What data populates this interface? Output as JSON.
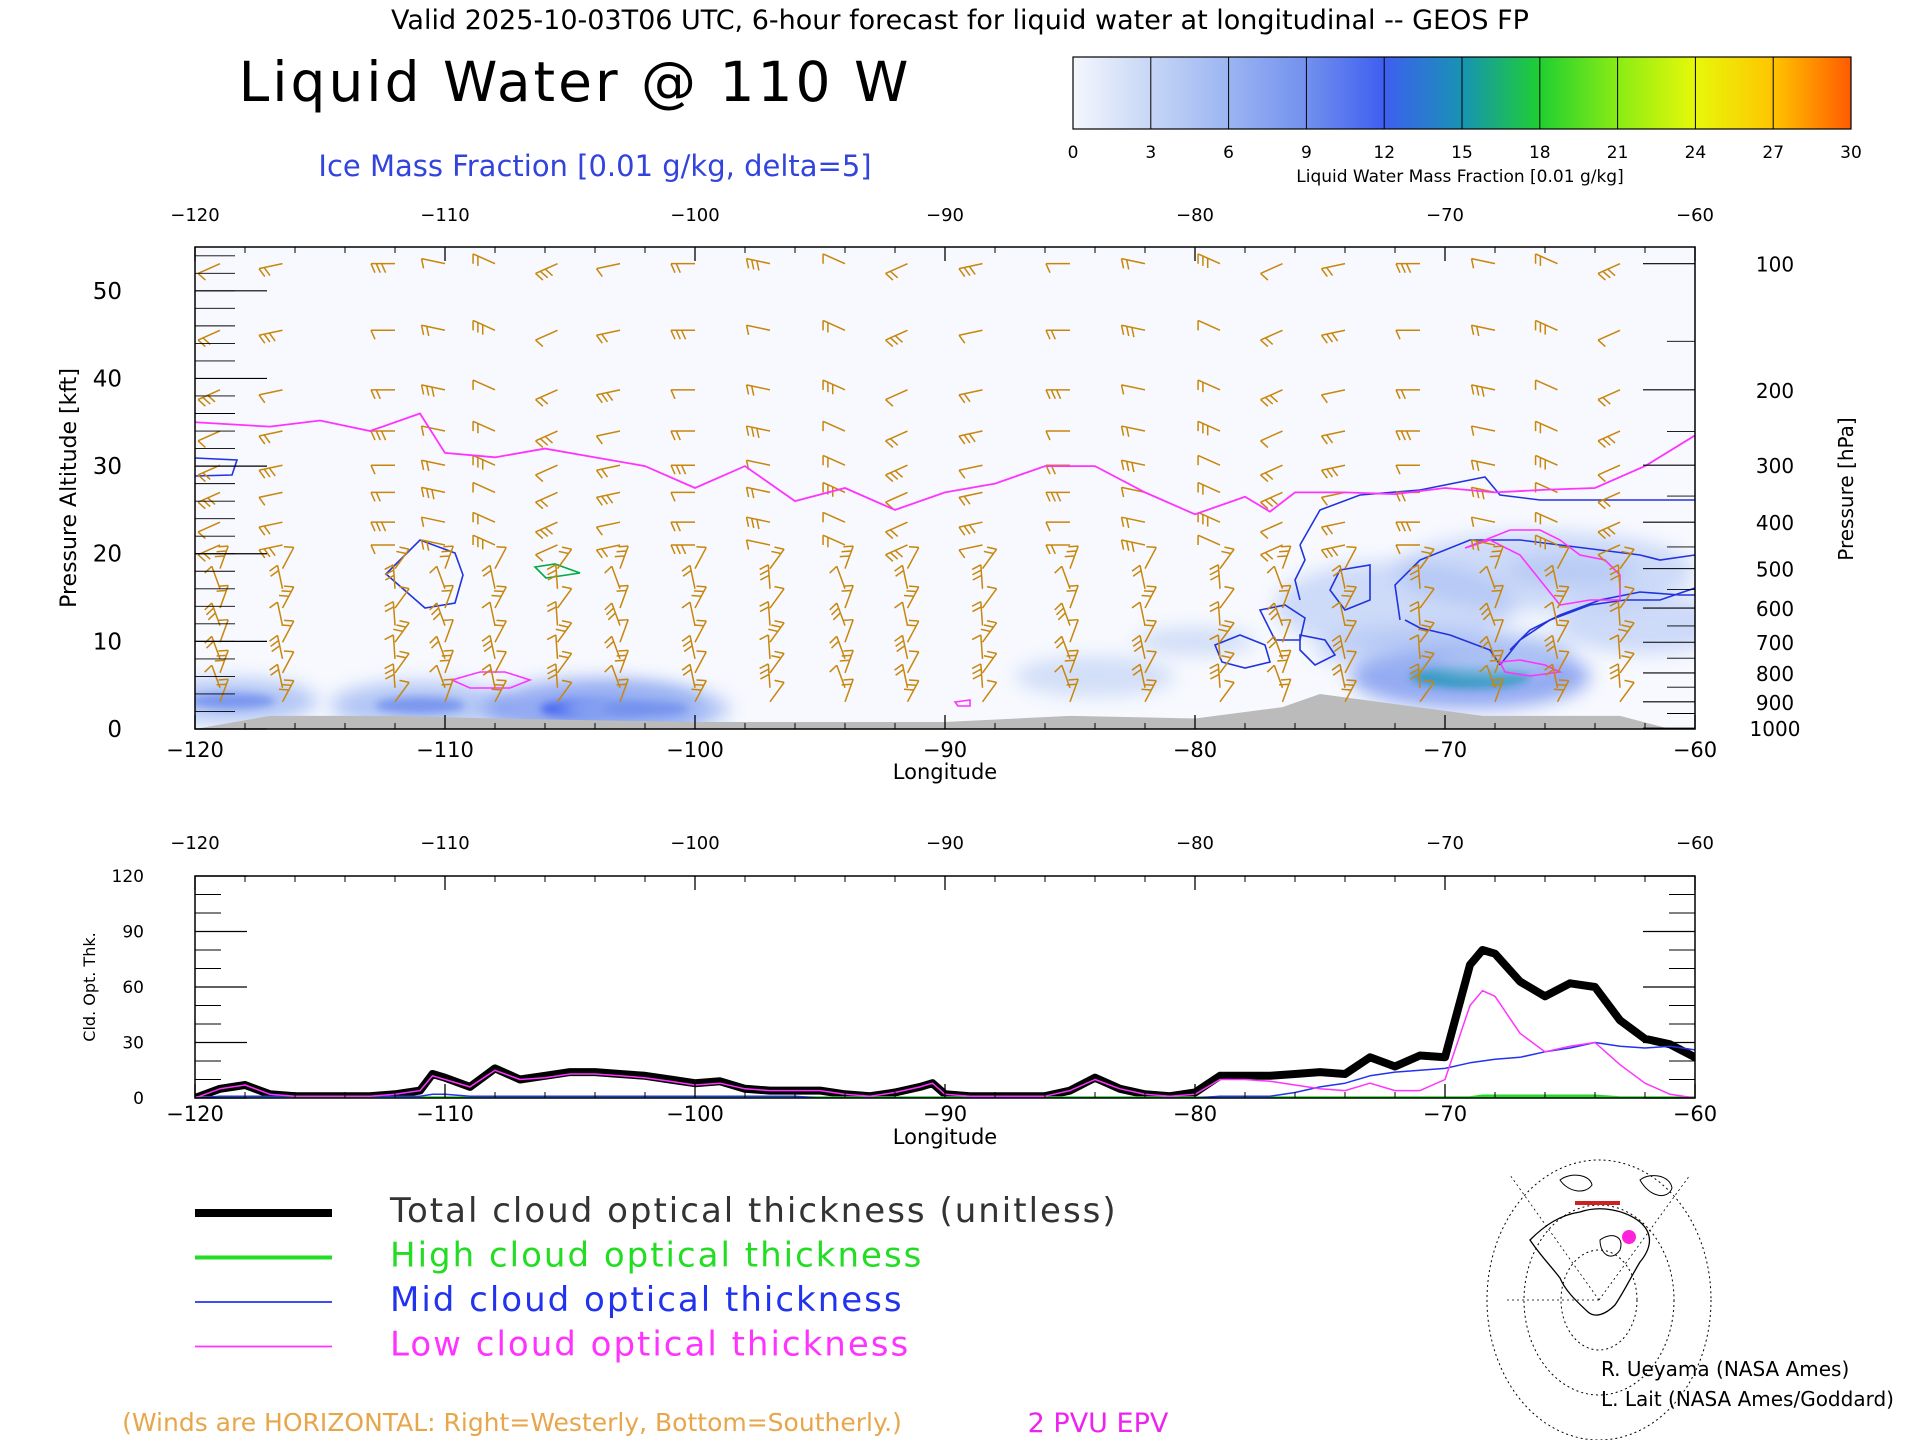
{
  "header": {
    "top_line": "Valid 2025-10-03T06 UTC, 6-hour forecast for liquid water at longitudinal -- GEOS FP",
    "title": "Liquid Water @ 110 W",
    "subtitle": "Ice Mass Fraction [0.01 g/kg, delta=5]"
  },
  "colorbar": {
    "label": "Liquid Water Mass Fraction [0.01 g/kg]",
    "ticks": [
      "0",
      "3",
      "6",
      "9",
      "12",
      "15",
      "18",
      "21",
      "24",
      "27",
      "30"
    ],
    "colors": [
      "#f4f7fd",
      "#c6d6f6",
      "#9bb5f2",
      "#7290ee",
      "#3e5ff0",
      "#1793b3",
      "#1fcf31",
      "#8aec14",
      "#e8f80a",
      "#ffc400",
      "#ff5a00"
    ]
  },
  "legend": {
    "items": [
      {
        "label": "Total cloud optical thickness (unitless)",
        "color": "#000000"
      },
      {
        "label": "High cloud optical thickness",
        "color": "#22dd22"
      },
      {
        "label": "Mid cloud optical thickness",
        "color": "#2233ee"
      },
      {
        "label": "Low cloud optical thickness",
        "color": "#ff33ff"
      }
    ]
  },
  "footer": {
    "winds_note": "(Winds are HORIZONTAL: Right=Westerly, Bottom=Southerly.)",
    "epv_label": "2 PVU EPV",
    "credit_1": "R. Ueyama (NASA Ames)",
    "credit_2": "L. Lait (NASA Ames/Goddard)"
  },
  "colors": {
    "wind_barb": "#c8860b",
    "ice_contour": "#2233dd",
    "epv": "#ff33ff",
    "terrain": "#bbbbbb",
    "epv_text": "#ee22ee",
    "subtitle_text": "#3344dd",
    "winds_text": "#e8a64a"
  },
  "chart_data": [
    {
      "type": "heatmap",
      "name_hint": "cross-section",
      "xlabel": "Longitude",
      "ylabel": "Pressure Altitude [kft]",
      "ylabel_right": "Pressure [hPa]",
      "xlim": [
        -120,
        -60
      ],
      "ylim": [
        0,
        55
      ],
      "xticks": [
        "−120",
        "−110",
        "−100",
        "−90",
        "−80",
        "−70",
        "−60"
      ],
      "xtick_values": [
        -120,
        -110,
        -100,
        -90,
        -80,
        -70,
        -60
      ],
      "yticks": [
        "0",
        "10",
        "20",
        "30",
        "40",
        "50"
      ],
      "ytick_values": [
        0,
        10,
        20,
        30,
        40,
        50
      ],
      "pressure_ticks": [
        {
          "label": "100",
          "kft": 53.1
        },
        {
          "label": "200",
          "kft": 38.7
        },
        {
          "label": "300",
          "kft": 30.1
        },
        {
          "label": "400",
          "kft": 23.6
        },
        {
          "label": "500",
          "kft": 18.3
        },
        {
          "label": "600",
          "kft": 13.8
        },
        {
          "label": "700",
          "kft": 9.9
        },
        {
          "label": "800",
          "kft": 6.4
        },
        {
          "label": "900",
          "kft": 3.1
        },
        {
          "label": "1000",
          "kft": 0.1
        }
      ],
      "epv_2pvu_line": {
        "lon": [
          -120,
          -117,
          -115,
          -113,
          -111,
          -110,
          -108,
          -106,
          -104,
          -102,
          -100,
          -98,
          -96,
          -94,
          -92,
          -90,
          -88,
          -86,
          -84,
          -82,
          -80,
          -78,
          -77,
          -76,
          -74,
          -72,
          -70,
          -68,
          -66,
          -64,
          -62,
          -60
        ],
        "kft": [
          35,
          34.5,
          35.2,
          34,
          36,
          31.5,
          31,
          32,
          31,
          30,
          27.5,
          30,
          26,
          27.5,
          25,
          27,
          28,
          30,
          30,
          27,
          24.5,
          26.5,
          24.8,
          27,
          27,
          26.8,
          27.5,
          27,
          27.3,
          27.5,
          30,
          33.5
        ]
      },
      "liquid_water_blobs": [
        {
          "lon": -118.5,
          "kft": 3.2,
          "value": 8
        },
        {
          "lon": -111,
          "kft": 2.7,
          "value": 9
        },
        {
          "lon": -104,
          "kft": 2.3,
          "value": 13
        },
        {
          "lon": -102,
          "kft": 2.3,
          "value": 8
        },
        {
          "lon": -84,
          "kft": 6,
          "value": 7
        },
        {
          "lon": -80,
          "kft": 10,
          "value": 3
        },
        {
          "lon": -69,
          "kft": 6,
          "value": 15
        },
        {
          "lon": -65,
          "kft": 18,
          "value": 4
        },
        {
          "lon": -68,
          "kft": 8,
          "value": 3
        }
      ],
      "terrain": {
        "lon": [
          -120,
          -117,
          -112,
          -108,
          -100,
          -95,
          -90,
          -85,
          -80,
          -76.5,
          -75,
          -68.5,
          -63,
          -61
        ],
        "kft": [
          0,
          1.5,
          1.5,
          1.2,
          0.8,
          0.8,
          0.8,
          1.5,
          1.2,
          2.5,
          4,
          1.5,
          1.5,
          0
        ]
      }
    },
    {
      "type": "line",
      "name_hint": "optical-thickness",
      "xlabel": "Longitude",
      "ylabel": "Cld. Opt. Thk.",
      "xlim": [
        -120,
        -60
      ],
      "ylim": [
        0,
        120
      ],
      "yticks": [
        "0",
        "30",
        "60",
        "90",
        "120"
      ],
      "ytick_values": [
        0,
        30,
        60,
        90,
        120
      ],
      "x": [
        -120,
        -119,
        -118,
        -117,
        -116,
        -115,
        -114,
        -113,
        -112,
        -111,
        -110.5,
        -110,
        -109,
        -108,
        -107,
        -106,
        -105,
        -104,
        -103,
        -102,
        -101,
        -100,
        -99,
        -98,
        -97,
        -96,
        -95,
        -94,
        -93,
        -92,
        -91,
        -90.5,
        -90,
        -89,
        -88,
        -87,
        -86,
        -85,
        -84,
        -83,
        -82,
        -81,
        -80,
        -79,
        -78,
        -77,
        -76,
        -75,
        -74,
        -73,
        -72,
        -71,
        -70,
        -69,
        -68.5,
        -68,
        -67,
        -66,
        -65,
        -64,
        -63,
        -62,
        -61,
        -60
      ],
      "series": [
        {
          "name": "Total cloud optical thickness (unitless)",
          "color": "#000000",
          "values": [
            0,
            5,
            7,
            2,
            1,
            1,
            1,
            1,
            2,
            4,
            13,
            11,
            6,
            16,
            10,
            12,
            14,
            14,
            13,
            12,
            10,
            8,
            9,
            5,
            4,
            4,
            4,
            2,
            1,
            3,
            6,
            8,
            2,
            1,
            1,
            1,
            1,
            4,
            11,
            5,
            2,
            1,
            3,
            12,
            12,
            12,
            13,
            14,
            13,
            22,
            17,
            23,
            22,
            72,
            80,
            78,
            63,
            55,
            62,
            60,
            42,
            32,
            29,
            22
          ]
        },
        {
          "name": "High cloud optical thickness",
          "color": "#22dd22",
          "values": [
            0,
            0,
            0,
            0,
            0,
            0,
            0,
            0,
            0,
            0,
            0,
            0,
            0,
            0,
            0,
            0,
            0,
            0,
            0,
            0,
            0,
            0,
            0,
            0,
            0,
            0,
            0,
            0,
            0,
            0,
            0,
            0,
            0,
            0,
            0,
            0,
            0,
            0,
            0,
            0,
            0,
            0,
            0,
            0,
            0,
            0,
            0,
            0,
            0,
            0,
            0,
            0,
            0,
            0,
            1,
            1,
            1,
            1,
            1,
            1,
            0,
            0,
            0,
            0
          ]
        },
        {
          "name": "Mid cloud optical thickness",
          "color": "#2233ee",
          "values": [
            0,
            1,
            1,
            1,
            1,
            1,
            1,
            1,
            1,
            1,
            2,
            2,
            1,
            1,
            1,
            1,
            1,
            1,
            1,
            1,
            1,
            1,
            1,
            1,
            1,
            1,
            0,
            0,
            0,
            0,
            0,
            0,
            0,
            0,
            0,
            0,
            0,
            0,
            0,
            0,
            0,
            0,
            0,
            1,
            1,
            1,
            3,
            6,
            8,
            12,
            14,
            15,
            16,
            19,
            20,
            21,
            22,
            25,
            27,
            30,
            28,
            27,
            28,
            26
          ]
        },
        {
          "name": "Low cloud optical thickness",
          "color": "#ff33ff",
          "values": [
            0,
            5,
            7,
            2,
            1,
            1,
            1,
            1,
            2,
            4,
            12,
            10,
            6,
            15,
            10,
            11,
            13,
            13,
            12,
            11,
            9,
            7,
            8,
            5,
            4,
            4,
            4,
            2,
            1,
            3,
            6,
            8,
            2,
            1,
            1,
            1,
            1,
            4,
            10,
            5,
            2,
            1,
            2,
            10,
            10,
            9,
            7,
            5,
            4,
            8,
            4,
            4,
            10,
            50,
            58,
            55,
            35,
            25,
            28,
            30,
            18,
            8,
            2,
            0
          ]
        }
      ]
    }
  ]
}
